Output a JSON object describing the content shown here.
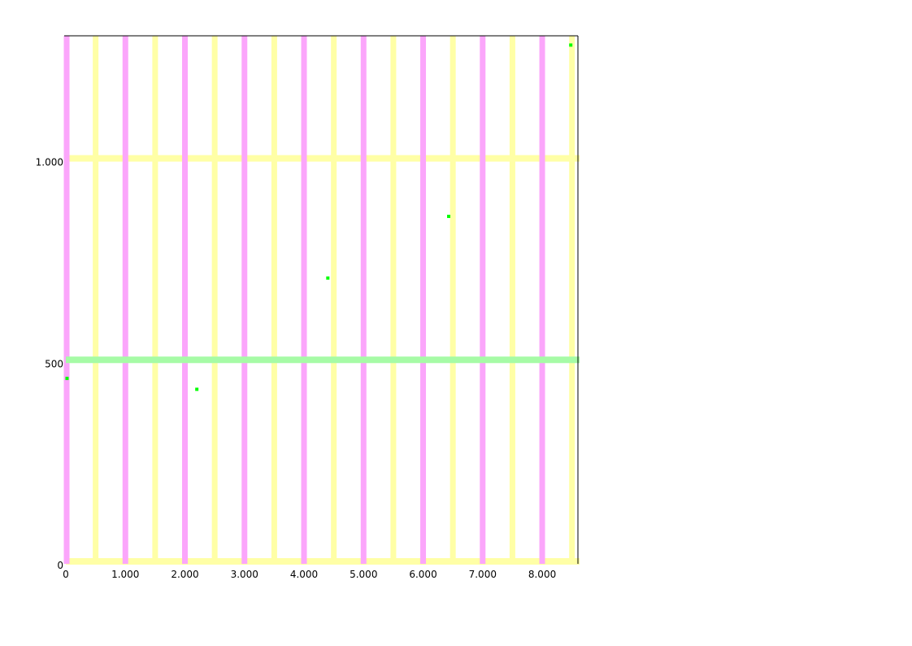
{
  "chart_data": {
    "type": "scatter",
    "title": "",
    "xlabel": "",
    "ylabel": "",
    "xlim": [
      0,
      8600
    ],
    "ylim": [
      0,
      1310
    ],
    "x_ticks": [
      0,
      1000,
      2000,
      3000,
      4000,
      5000,
      6000,
      7000,
      8000
    ],
    "x_tick_labels": [
      "0",
      "1.000",
      "2.000",
      "3.000",
      "4.000",
      "5.000",
      "6.000",
      "7.000",
      "8.000"
    ],
    "y_ticks": [
      0,
      500,
      1000
    ],
    "y_tick_labels": [
      "0",
      "500",
      "1.000"
    ],
    "colors": {
      "major_vertical_grid": "#fba6fb",
      "minor_vertical_grid": "#ffffa6",
      "horizontal_grid": "#ffffa6",
      "highlight_line": "#a6fba6",
      "points": "#00ff00",
      "axis_frame": "#000000"
    },
    "major_vertical_grid_x": [
      0,
      1000,
      2000,
      3000,
      4000,
      5000,
      6000,
      7000,
      8000
    ],
    "minor_vertical_grid_x": [
      500,
      1500,
      2500,
      3500,
      4500,
      5500,
      6500,
      7500,
      8500
    ],
    "horizontal_grid_y": [
      0,
      1000
    ],
    "highlight_line_y": 500,
    "series": [
      {
        "points": [
          {
            "x": 20,
            "y": 460
          },
          {
            "x": 2200,
            "y": 433
          },
          {
            "x": 4400,
            "y": 709
          },
          {
            "x": 6430,
            "y": 862
          },
          {
            "x": 8480,
            "y": 1287
          }
        ]
      }
    ]
  }
}
